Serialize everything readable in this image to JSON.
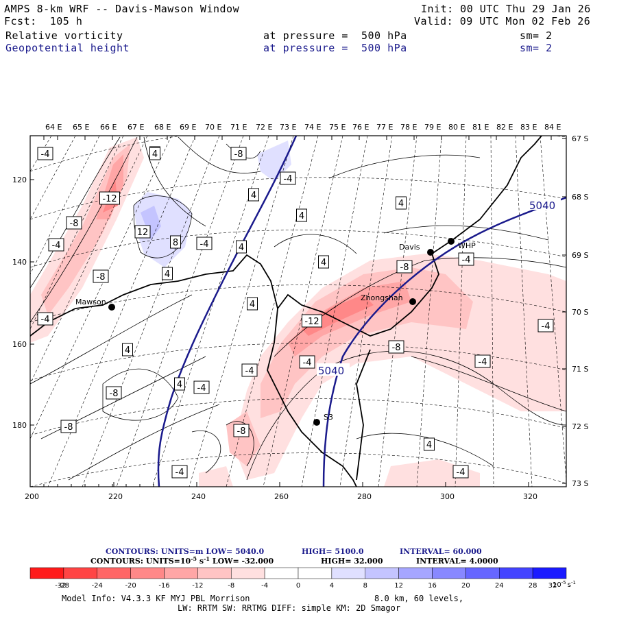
{
  "header": {
    "title": "AMPS 8-km WRF -- Davis-Mawson Window",
    "fcst": "Fcst:  105 h",
    "init": "Init: 00 UTC Thu 29 Jan 26",
    "valid": "Valid: 09 UTC Mon 02 Feb 26",
    "field1": {
      "name": "Relative vorticity",
      "level": "at pressure =  500 hPa",
      "sm": "sm= 2"
    },
    "field2": {
      "name": "Geopotential height",
      "level": "at pressure =  500 hPa",
      "sm": "sm= 2"
    }
  },
  "map": {
    "lon_labels": [
      "64 E",
      "65 E",
      "66 E",
      "67 E",
      "68 E",
      "69 E",
      "70 E",
      "71 E",
      "72 E",
      "73 E",
      "74 E",
      "75 E",
      "76 E",
      "77 E",
      "78 E",
      "79 E",
      "80 E",
      "81 E",
      "82 E",
      "83 E",
      "84 E"
    ],
    "lat_labels": [
      "67 S",
      "68 S",
      "69 S",
      "70 S",
      "71 S",
      "72 S",
      "73 S"
    ],
    "x_ticks": [
      "200",
      "220",
      "240",
      "260",
      "280",
      "300",
      "320"
    ],
    "y_ticks": [
      "120",
      "140",
      "160",
      "180"
    ],
    "stations": [
      {
        "name": "Mawson"
      },
      {
        "name": "Davis"
      },
      {
        "name": "WHP"
      },
      {
        "name": "Zhongshan"
      },
      {
        "name": "S3"
      }
    ],
    "height_labels": [
      "5040",
      "5040"
    ],
    "vort_labels": [
      "-4",
      "4",
      "4",
      "-8",
      "-8",
      "4",
      "-12",
      "-8",
      "12",
      "8",
      "-4",
      "-4",
      "4",
      "4",
      "-8",
      "4",
      "4",
      "4",
      "-4",
      "-8",
      "-4",
      "-8",
      "-12",
      "-4",
      "-4",
      "4",
      "4",
      "-4",
      "4",
      "-8",
      "-8",
      "-4",
      "-4",
      "-4",
      "-4",
      "4",
      "-4",
      "4"
    ]
  },
  "contours_info": {
    "line1": {
      "label": "CONTOURS:  UNITS=m  LOW=  5040.0",
      "high": "HIGH=  5100.0",
      "interval": "INTERVAL=    60.000"
    },
    "line2": {
      "label": "CONTOURS:  UNITS=10",
      "exp": "-5",
      "unit_s": " s",
      "exp2": "-1",
      "low": "  LOW=  -32.000",
      "high": "HIGH=   32.000",
      "interval": "INTERVAL=    4.0000"
    }
  },
  "colorbar": {
    "colors": [
      "#ff1a1a",
      "#ff4444",
      "#ff6666",
      "#ff8888",
      "#ffa6a6",
      "#ffc4c4",
      "#ffe0e0",
      "#ffffff",
      "#ffffff",
      "#e0e0ff",
      "#c4c4ff",
      "#a6a6ff",
      "#8888ff",
      "#6666ff",
      "#4444ff",
      "#1a1aff"
    ],
    "ticks": [
      "-32",
      "-28",
      "-24",
      "-20",
      "-16",
      "-12",
      "-8",
      "-4",
      "0",
      "4",
      "8",
      "12",
      "16",
      "20",
      "24",
      "28",
      "32"
    ],
    "unit": "10",
    "unit_exp": "-5",
    "unit_s": "s",
    "unit_exp2": "-1"
  },
  "model_info": {
    "line1a": "Model Info: V4.3.3  KF       MYJ PBL  Morrison",
    "line1b": "8.0 km,  60 levels,",
    "line2": "LW: RRTM SW: RRTMG   DIFF: simple KM: 2D Smagor"
  }
}
